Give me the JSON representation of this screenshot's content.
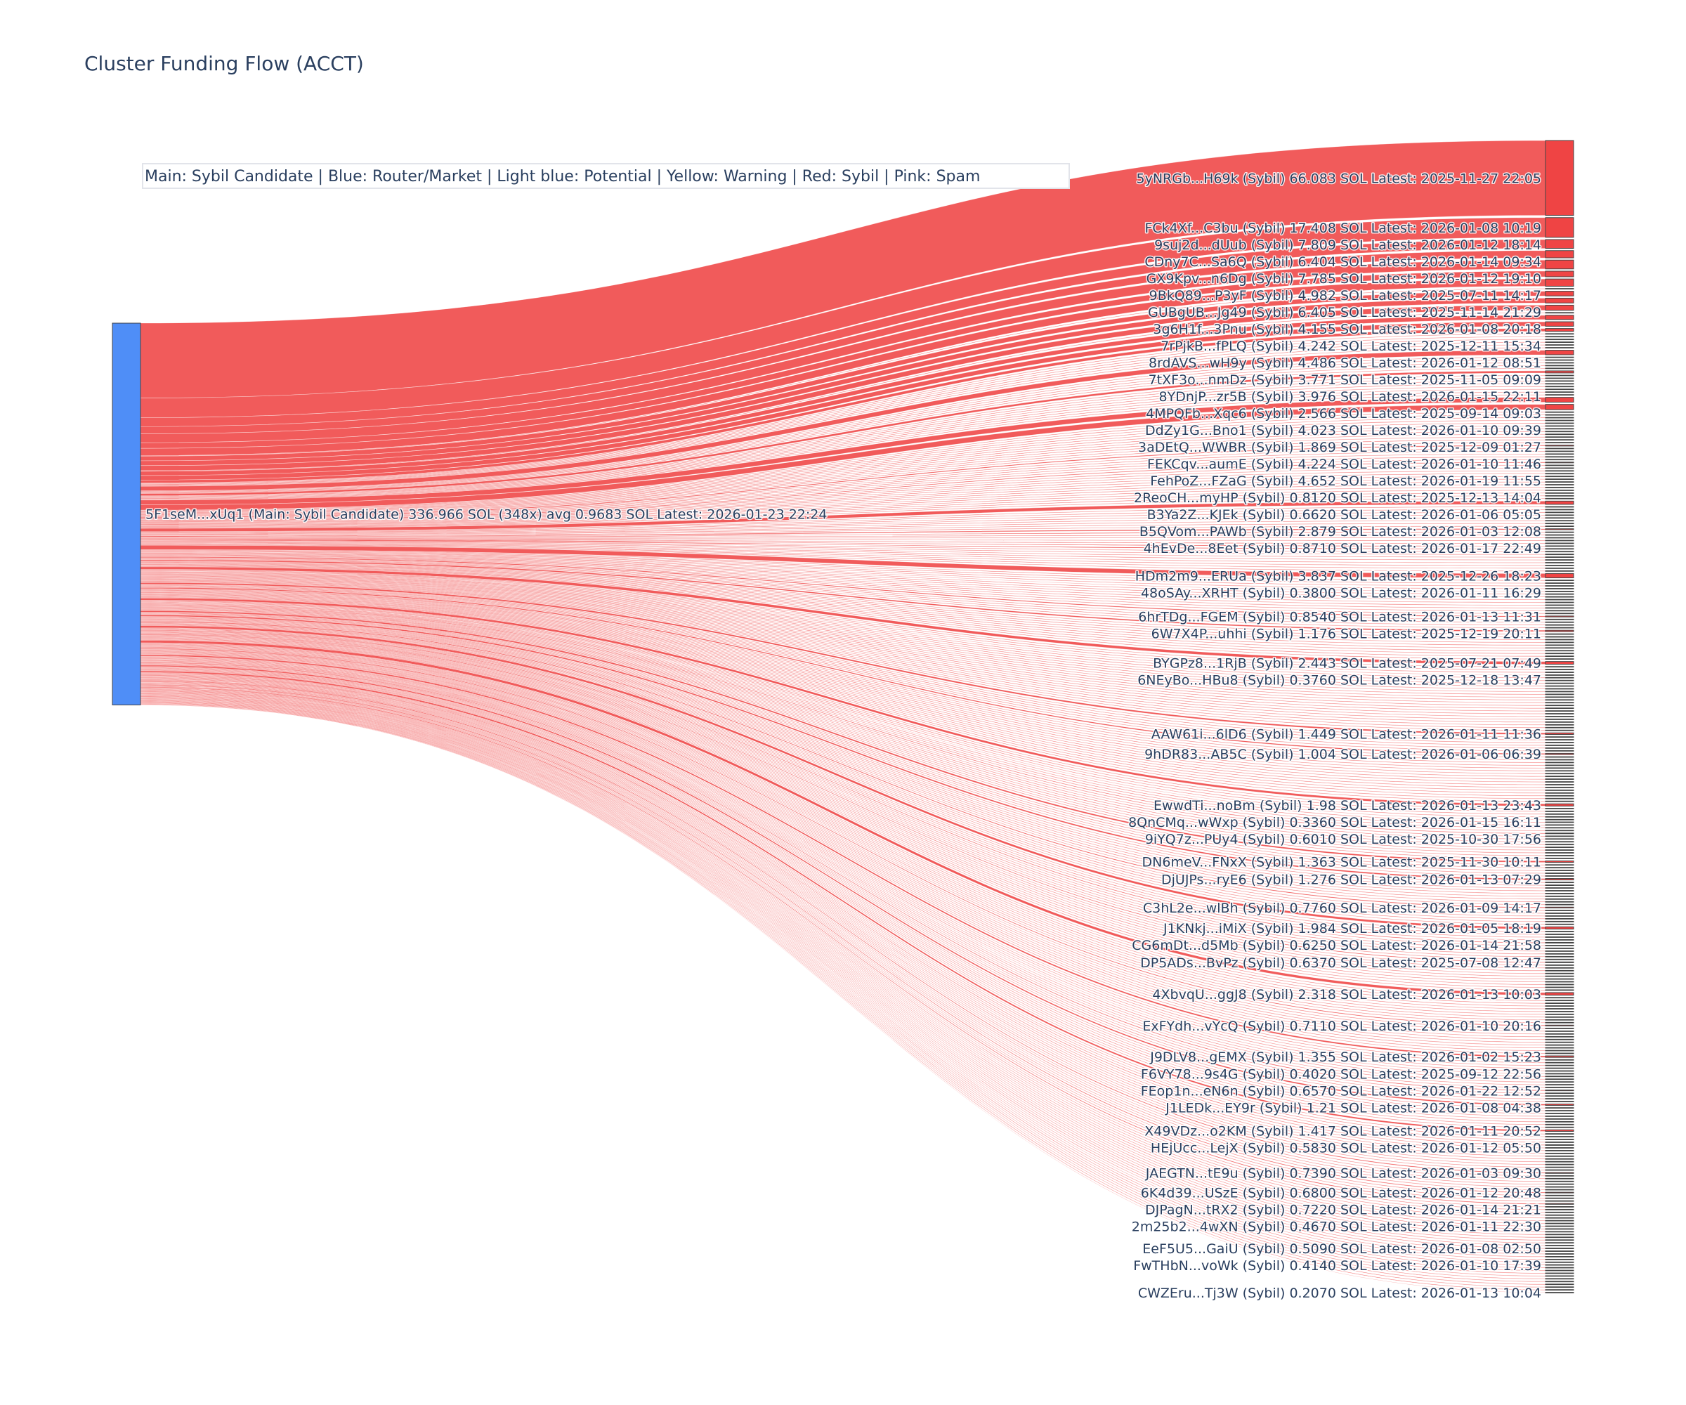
{
  "chart_data": {
    "type": "sankey",
    "title": "Cluster Funding Flow (ACCT)",
    "legend_note": "Main: Sybil Candidate  |  Blue: Router/Market | Light blue: Potential | Yellow: Warning | Red: Sybil | Pink: Spam",
    "colors": {
      "main_node": "#4f8ef7",
      "sybil": "#ef4444",
      "node_border": "#444444",
      "text": "#2a3f5f"
    },
    "source": {
      "label": "5F1seM...xUq1 (Main: Sybil Candidate) 336.966 SOL (348x) avg 0.9683 SOL Latest: 2026-01-23 22:24",
      "total": 336.966,
      "count": 348
    },
    "targets": [
      {
        "label": "5yNRGb...H69k (Sybil) 66.083 SOL Latest: 2025-11-27 22:05",
        "value": 66.083,
        "fillers_before": 0
      },
      {
        "label": "FCk4Xf...C3bu (Sybil) 17.408 SOL Latest: 2026-01-08 10:19",
        "value": 17.408,
        "fillers_before": 0
      },
      {
        "label": "9suj2d...dUub (Sybil) 7.809 SOL Latest: 2026-01-12 18:14",
        "value": 7.809,
        "fillers_before": 0
      },
      {
        "label": "CDny7C...Sa6Q (Sybil) 6.404 SOL Latest: 2026-01-14 09:34",
        "value": 6.404,
        "fillers_before": 0
      },
      {
        "label": "GX9Kpv...n6Dg (Sybil) 7.785 SOL Latest: 2026-01-12 19:10",
        "value": 7.785,
        "fillers_before": 0
      },
      {
        "label": "9BkQ89...P3yF (Sybil) 4.982 SOL Latest: 2025-07-11 14:17",
        "value": 4.982,
        "fillers_before": 0
      },
      {
        "label": "GUBgUB...Jg49 (Sybil) 6.405 SOL Latest: 2025-11-14 21:29",
        "value": 6.405,
        "fillers_before": 0
      },
      {
        "label": "3g6H1f...3Pnu (Sybil) 4.155 SOL Latest: 2026-01-08 20:18",
        "value": 4.155,
        "fillers_before": 1
      },
      {
        "label": "7rPjkB...fPLQ (Sybil) 4.242 SOL Latest: 2025-12-11 15:34",
        "value": 4.242,
        "fillers_before": 0
      },
      {
        "label": "8rdAVS...wH9y (Sybil) 4.486 SOL Latest: 2026-01-12 08:51",
        "value": 4.486,
        "fillers_before": 0
      },
      {
        "label": "7tXF3o...nmDz (Sybil) 3.771 SOL Latest: 2025-11-05 09:09",
        "value": 3.771,
        "fillers_before": 1
      },
      {
        "label": "8YDnjP...zr5B (Sybil) 3.976 SOL Latest: 2026-01-15 22:11",
        "value": 3.976,
        "fillers_before": 0
      },
      {
        "label": "4MPQFb...Xqc6 (Sybil) 2.566 SOL Latest: 2025-09-14 09:03",
        "value": 2.566,
        "fillers_before": 0
      },
      {
        "label": "DdZy1G...Bno1 (Sybil) 4.023 SOL Latest: 2026-01-10 09:39",
        "value": 4.023,
        "fillers_before": 6
      },
      {
        "label": "3aDEtQ...WWBR (Sybil) 1.869 SOL Latest: 2025-12-09 01:27",
        "value": 1.869,
        "fillers_before": 5
      },
      {
        "label": "FEKCqv...aumE (Sybil) 4.224 SOL Latest: 2026-01-10 11:46",
        "value": 4.224,
        "fillers_before": 8
      },
      {
        "label": "FehPoZ...FZaG (Sybil) 4.652 SOL Latest: 2026-01-19 11:55",
        "value": 4.652,
        "fillers_before": 0
      },
      {
        "label": "2ReoCH...myHP (Sybil) 0.8120 SOL Latest: 2025-12-13 14:04",
        "value": 0.812,
        "fillers_before": 12
      },
      {
        "label": "B3Ya2Z...KJEk (Sybil) 0.6620 SOL Latest: 2026-01-06 05:05",
        "value": 0.662,
        "fillers_before": 5
      },
      {
        "label": "B5QVom...PAWb (Sybil) 2.879 SOL Latest: 2026-01-03 12:08",
        "value": 2.879,
        "fillers_before": 13
      },
      {
        "label": "4hEvDe...8Eet (Sybil) 0.8710 SOL Latest: 2026-01-17 22:49",
        "value": 0.871,
        "fillers_before": 8
      },
      {
        "label": "HDm2m9...ERUa (Sybil) 3.837 SOL Latest: 2025-12-26 18:23",
        "value": 3.837,
        "fillers_before": 15
      },
      {
        "label": "48oSAy...XRHT (Sybil) 0.3800 SOL Latest: 2026-01-11 16:29",
        "value": 0.38,
        "fillers_before": 4
      },
      {
        "label": "6hrTDg...FGEM (Sybil) 0.8540 SOL Latest: 2026-01-13 11:31",
        "value": 0.854,
        "fillers_before": 8
      },
      {
        "label": "6W7X4P...uhhi (Sybil) 1.176 SOL Latest: 2025-12-19 20:11",
        "value": 1.176,
        "fillers_before": 4
      },
      {
        "label": "BYGPz8...1RjB (Sybil) 2.443 SOL Latest: 2025-07-21 07:49",
        "value": 2.443,
        "fillers_before": 10
      },
      {
        "label": "6NEyBo...HBu8 (Sybil) 0.3760 SOL Latest: 2025-12-18 13:47",
        "value": 0.376,
        "fillers_before": 3
      },
      {
        "label": "AAW61i...6lD6 (Sybil) 1.449 SOL Latest: 2026-01-11 11:36",
        "value": 1.449,
        "fillers_before": 20
      },
      {
        "label": "9hDR83...AB5C (Sybil) 1.004 SOL Latest: 2026-01-06 06:39",
        "value": 1.004,
        "fillers_before": 6
      },
      {
        "label": "EwwdTi...noBm (Sybil) 1.98 SOL Latest: 2026-01-13 23:43",
        "value": 1.98,
        "fillers_before": 17
      },
      {
        "label": "8QnCMq...wWxp (Sybil) 0.3360 SOL Latest: 2026-01-15 16:11",
        "value": 0.336,
        "fillers_before": 4
      },
      {
        "label": "9iYQ7z...PUy4 (Sybil) 0.6010 SOL Latest: 2025-10-30 17:56",
        "value": 0.601,
        "fillers_before": 4
      },
      {
        "label": "DN6meV...FNxX (Sybil) 1.363 SOL Latest: 2025-11-30 10:11",
        "value": 1.363,
        "fillers_before": 9
      },
      {
        "label": "DjUJPs...ryE6 (Sybil) 1.276 SOL Latest: 2026-01-13 07:29",
        "value": 1.276,
        "fillers_before": 5
      },
      {
        "label": "C3hL2e...wlBh (Sybil) 0.7760 SOL Latest: 2026-01-09 14:17",
        "value": 0.776,
        "fillers_before": 9
      },
      {
        "label": "J1KNkj...iMiX (Sybil) 1.984 SOL Latest: 2026-01-05 18:19",
        "value": 1.984,
        "fillers_before": 6
      },
      {
        "label": "CG6mDt...d5Mb (Sybil) 0.6250 SOL Latest: 2026-01-14 21:58",
        "value": 0.625,
        "fillers_before": 4
      },
      {
        "label": "DP5ADs...BvPz (Sybil) 0.6370 SOL Latest: 2025-07-08 12:47",
        "value": 0.637,
        "fillers_before": 6
      },
      {
        "label": "4XbvqU...ggJ8 (Sybil) 2.318 SOL Latest: 2026-01-13 10:03",
        "value": 2.318,
        "fillers_before": 10
      },
      {
        "label": "ExFYdh...vYcQ (Sybil) 0.7110 SOL Latest: 2026-01-10 20:16",
        "value": 0.711,
        "fillers_before": 10
      },
      {
        "label": "J9DLV8...gEMX (Sybil) 1.355 SOL Latest: 2026-01-02 15:23",
        "value": 1.355,
        "fillers_before": 10
      },
      {
        "label": "F6VY78...9s4G (Sybil) 0.4020 SOL Latest: 2025-09-12 22:56",
        "value": 0.402,
        "fillers_before": 5
      },
      {
        "label": "FEop1n...eN6n (Sybil) 0.6570 SOL Latest: 2026-01-22 12:52",
        "value": 0.657,
        "fillers_before": 5
      },
      {
        "label": "J1LEDk...EY9r (Sybil) 1.21 SOL Latest: 2026-01-08 04:38",
        "value": 1.21,
        "fillers_before": 4
      },
      {
        "label": "X49VDz...o2KM (Sybil) 1.417 SOL Latest: 2026-01-11 20:52",
        "value": 1.417,
        "fillers_before": 8
      },
      {
        "label": "HEjUcc...LejX (Sybil) 0.5830 SOL Latest: 2026-01-12 05:50",
        "value": 0.583,
        "fillers_before": 4
      },
      {
        "label": "JAEGTN...tE9u (Sybil) 0.7390 SOL Latest: 2026-01-03 09:30",
        "value": 0.739,
        "fillers_before": 9
      },
      {
        "label": "6K4d39...USzE (Sybil) 0.6800 SOL Latest: 2026-01-12 20:48",
        "value": 0.68,
        "fillers_before": 6
      },
      {
        "label": "DJPagN...tRX2 (Sybil) 0.7220 SOL Latest: 2026-01-14 21:21",
        "value": 0.722,
        "fillers_before": 3
      },
      {
        "label": "2m25b2...4wXN (Sybil) 0.4670 SOL Latest: 2026-01-11 22:30",
        "value": 0.467,
        "fillers_before": 5
      },
      {
        "label": "EeF5U5...GaiU (Sybil) 0.5090 SOL Latest: 2026-01-08 02:50",
        "value": 0.509,
        "fillers_before": 9
      },
      {
        "label": "FwTHbN...voWk (Sybil) 0.4140 SOL Latest: 2026-01-10 17:39",
        "value": 0.414,
        "fillers_before": 4
      },
      {
        "label": "CWZEru...Tj3W (Sybil) 0.2070 SOL Latest: 2026-01-13 10:04",
        "value": 0.207,
        "fillers_before": 10
      }
    ]
  }
}
